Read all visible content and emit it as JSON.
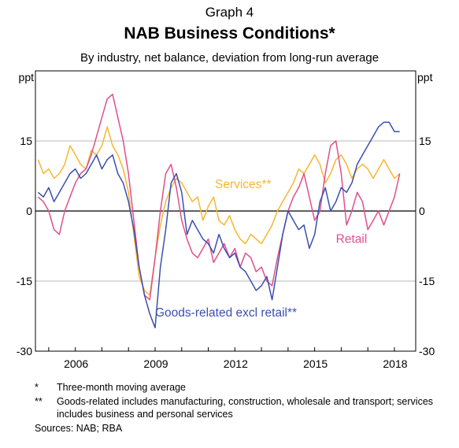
{
  "graph_label": "Graph 4",
  "title": "NAB Business Conditions*",
  "subtitle": "By industry, net balance, deviation from long-run average",
  "chart_data": {
    "type": "line",
    "title": "NAB Business Conditions*",
    "subtitle": "By industry, net balance, deviation from long-run average",
    "ylabel_left": "ppt",
    "ylabel_right": "ppt",
    "ylim": [
      -30,
      30
    ],
    "yticks": [
      -30,
      -15,
      0,
      15
    ],
    "xlim": [
      2004.5,
      2018.8
    ],
    "xticks": [
      2006,
      2009,
      2012,
      2015,
      2018
    ],
    "xtick_labels": [
      "2006",
      "2009",
      "2012",
      "2015",
      "2018"
    ],
    "grid": "horizontal",
    "series": [
      {
        "name": "Services**",
        "color": "#f5b731",
        "x": [
          2004.6,
          2004.8,
          2005.0,
          2005.2,
          2005.4,
          2005.6,
          2005.8,
          2006.0,
          2006.2,
          2006.4,
          2006.6,
          2006.8,
          2007.0,
          2007.2,
          2007.4,
          2007.6,
          2007.8,
          2008.0,
          2008.2,
          2008.4,
          2008.6,
          2008.8,
          2009.0,
          2009.2,
          2009.4,
          2009.6,
          2009.8,
          2010.0,
          2010.2,
          2010.4,
          2010.6,
          2010.8,
          2011.0,
          2011.2,
          2011.4,
          2011.6,
          2011.8,
          2012.0,
          2012.2,
          2012.4,
          2012.6,
          2012.8,
          2013.0,
          2013.2,
          2013.4,
          2013.6,
          2013.8,
          2014.0,
          2014.2,
          2014.4,
          2014.6,
          2014.8,
          2015.0,
          2015.2,
          2015.4,
          2015.6,
          2015.8,
          2016.0,
          2016.2,
          2016.4,
          2016.6,
          2016.8,
          2017.0,
          2017.2,
          2017.4,
          2017.6,
          2017.8,
          2018.0,
          2018.2
        ],
        "values": [
          11,
          8,
          9,
          7,
          8,
          10,
          14,
          12,
          10,
          9,
          13,
          12,
          14,
          18,
          14,
          12,
          9,
          4,
          -5,
          -14,
          -17,
          -18,
          -10,
          -3,
          2,
          5,
          7,
          6,
          4,
          2,
          3,
          -2,
          1,
          3,
          -2,
          -3,
          -1,
          -4,
          -6,
          -7,
          -5,
          -6,
          -7,
          -5,
          -3,
          0,
          2,
          4,
          6,
          9,
          8,
          10,
          12,
          10,
          6,
          8,
          11,
          12,
          10,
          7,
          9,
          10,
          9,
          7,
          9,
          11,
          9,
          7,
          8
        ]
      },
      {
        "name": "Retail",
        "color": "#e04f8e",
        "x": [
          2004.6,
          2004.8,
          2005.0,
          2005.2,
          2005.4,
          2005.6,
          2005.8,
          2006.0,
          2006.2,
          2006.4,
          2006.6,
          2006.8,
          2007.0,
          2007.2,
          2007.4,
          2007.6,
          2007.8,
          2008.0,
          2008.2,
          2008.4,
          2008.6,
          2008.8,
          2009.0,
          2009.2,
          2009.4,
          2009.6,
          2009.8,
          2010.0,
          2010.2,
          2010.4,
          2010.6,
          2010.8,
          2011.0,
          2011.2,
          2011.4,
          2011.6,
          2011.8,
          2012.0,
          2012.2,
          2012.4,
          2012.6,
          2012.8,
          2013.0,
          2013.2,
          2013.4,
          2013.6,
          2013.8,
          2014.0,
          2014.2,
          2014.4,
          2014.6,
          2014.8,
          2015.0,
          2015.2,
          2015.4,
          2015.6,
          2015.8,
          2016.0,
          2016.2,
          2016.4,
          2016.6,
          2016.8,
          2017.0,
          2017.2,
          2017.4,
          2017.6,
          2017.8,
          2018.0,
          2018.2
        ],
        "values": [
          3,
          2,
          0,
          -4,
          -5,
          0,
          3,
          6,
          8,
          9,
          12,
          16,
          20,
          24,
          25,
          20,
          15,
          8,
          -2,
          -12,
          -18,
          -19,
          -10,
          0,
          8,
          10,
          5,
          -2,
          -6,
          -9,
          -10,
          -8,
          -6,
          -11,
          -9,
          -7,
          -10,
          -8,
          -12,
          -9,
          -10,
          -13,
          -12,
          -15,
          -16,
          -10,
          -5,
          0,
          3,
          5,
          8,
          3,
          -2,
          0,
          8,
          14,
          15,
          8,
          -3,
          0,
          4,
          2,
          -4,
          -2,
          0,
          -3,
          0,
          3,
          8
        ]
      },
      {
        "name": "Goods-related excl retail**",
        "color": "#3b4fb0",
        "x": [
          2004.6,
          2004.8,
          2005.0,
          2005.2,
          2005.4,
          2005.6,
          2005.8,
          2006.0,
          2006.2,
          2006.4,
          2006.6,
          2006.8,
          2007.0,
          2007.2,
          2007.4,
          2007.6,
          2007.8,
          2008.0,
          2008.2,
          2008.4,
          2008.6,
          2008.8,
          2009.0,
          2009.2,
          2009.4,
          2009.6,
          2009.8,
          2010.0,
          2010.2,
          2010.4,
          2010.6,
          2010.8,
          2011.0,
          2011.2,
          2011.4,
          2011.6,
          2011.8,
          2012.0,
          2012.2,
          2012.4,
          2012.6,
          2012.8,
          2013.0,
          2013.2,
          2013.4,
          2013.6,
          2013.8,
          2014.0,
          2014.2,
          2014.4,
          2014.6,
          2014.8,
          2015.0,
          2015.2,
          2015.4,
          2015.6,
          2015.8,
          2016.0,
          2016.2,
          2016.4,
          2016.6,
          2016.8,
          2017.0,
          2017.2,
          2017.4,
          2017.6,
          2017.8,
          2018.0,
          2018.2
        ],
        "values": [
          4,
          3,
          5,
          2,
          4,
          6,
          8,
          9,
          7,
          8,
          10,
          12,
          9,
          11,
          12,
          8,
          6,
          2,
          -4,
          -12,
          -18,
          -22,
          -25,
          -12,
          -4,
          6,
          8,
          4,
          -5,
          -2,
          -4,
          -6,
          -7,
          -9,
          -5,
          -8,
          -10,
          -9,
          -12,
          -13,
          -15,
          -17,
          -16,
          -14,
          -19,
          -12,
          -5,
          0,
          -2,
          -4,
          -3,
          -8,
          -5,
          2,
          5,
          0,
          2,
          5,
          4,
          6,
          10,
          12,
          14,
          16,
          18,
          19,
          19,
          17,
          17
        ]
      }
    ],
    "annotations": [
      {
        "text": "Services**",
        "series": "Services**"
      },
      {
        "text": "Retail",
        "series": "Retail"
      },
      {
        "text": "Goods-related excl retail**",
        "series": "Goods-related excl retail**"
      }
    ]
  },
  "notes": [
    {
      "mark": "*",
      "text": "Three-month moving average"
    },
    {
      "mark": "**",
      "text": "Goods-related includes manufacturing, construction, wholesale and transport; services includes business and personal services"
    }
  ],
  "sources": "Sources:   NAB; RBA"
}
